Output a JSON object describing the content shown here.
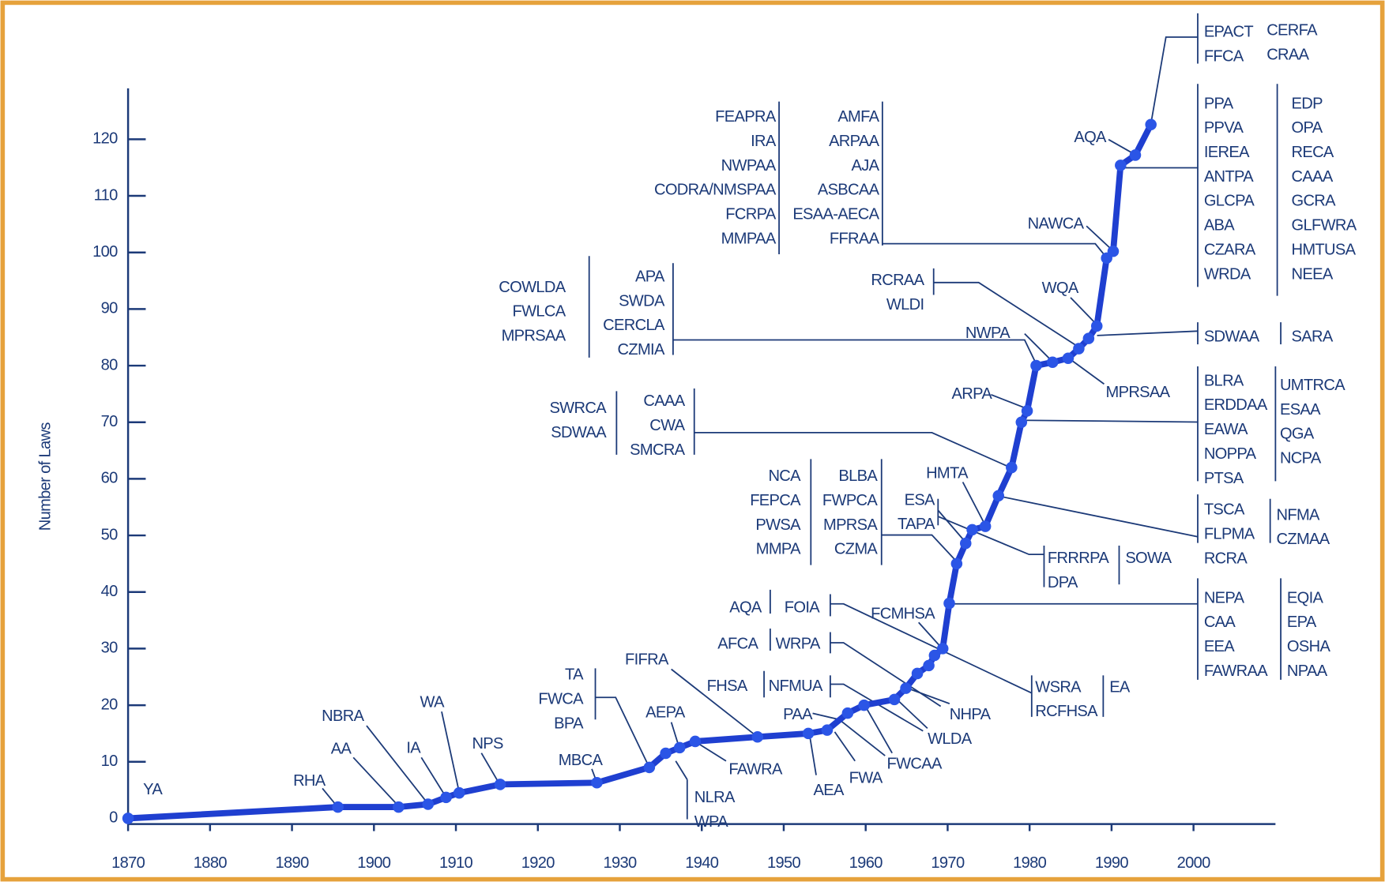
{
  "chart_data": {
    "type": "line",
    "y_label": "Number of Laws",
    "x": [
      1870,
      1895.6,
      1903,
      1906.6,
      1908.8,
      1910.4,
      1915.4,
      1927.2,
      1933.6,
      1935.6,
      1937.3,
      1939.2,
      1946.8,
      1953,
      1955.3,
      1957.8,
      1959.8,
      1963.5,
      1964.9,
      1966.3,
      1967.7,
      1968.4,
      1969.4,
      1970.2,
      1971.1,
      1972.2,
      1973,
      1974.6,
      1976.2,
      1977.8,
      1979,
      1979.7,
      1980.8,
      1982.8,
      1984.7,
      1986,
      1987.2,
      1988.2,
      1989.4,
      1990.2,
      1991.1,
      1992.9,
      1994.8
    ],
    "values": [
      0,
      2,
      2,
      2.5,
      3.7,
      4.5,
      6,
      6.3,
      9,
      11.5,
      12.5,
      13.6,
      14.4,
      15,
      15.6,
      18.6,
      20,
      21,
      23,
      25.6,
      27,
      28.8,
      30,
      38,
      45,
      48.6,
      51,
      51.6,
      57,
      62,
      70,
      72,
      80,
      80.6,
      81.3,
      83,
      84.8,
      87,
      99,
      100.2,
      115.4,
      117.2,
      122.6
    ],
    "color": "#1f3fd0",
    "marker_color": "#2b55e6",
    "xlim": [
      1870,
      2010
    ],
    "ylim": [
      -1,
      129
    ],
    "xticks": [
      1870,
      1880,
      1890,
      1900,
      1910,
      1920,
      1930,
      1940,
      1950,
      1960,
      1970,
      1980,
      1990,
      2000
    ],
    "yticks": [
      0,
      10,
      20,
      30,
      40,
      50,
      60,
      70,
      80,
      90,
      100,
      110,
      120
    ],
    "grid": false,
    "annotations": [
      {
        "columns": [
          [
            "YA"
          ]
        ]
      },
      {
        "columns": [
          [
            "RHA"
          ]
        ]
      },
      {
        "columns": [
          [
            "AA"
          ]
        ]
      },
      {
        "columns": [
          [
            "NBRA"
          ]
        ]
      },
      {
        "columns": [
          [
            "IA"
          ]
        ]
      },
      {
        "columns": [
          [
            "WA"
          ]
        ]
      },
      {
        "columns": [
          [
            "NPS"
          ]
        ]
      },
      {
        "columns": [
          [
            "MBCA"
          ]
        ]
      },
      {
        "columns": [
          [
            "TA",
            "FWCA",
            "BPA"
          ]
        ]
      },
      {
        "columns": [
          [
            "FIFRA"
          ]
        ]
      },
      {
        "columns": [
          [
            "AEPA"
          ]
        ]
      },
      {
        "columns": [
          [
            "NLRA",
            "WPA"
          ]
        ]
      },
      {
        "columns": [
          [
            "FAWRA"
          ]
        ]
      },
      {
        "columns": [
          [
            "FHSA"
          ]
        ]
      },
      {
        "columns": [
          [
            "AQA"
          ]
        ]
      },
      {
        "columns": [
          [
            "FOIA"
          ]
        ]
      },
      {
        "columns": [
          [
            "AFCA"
          ]
        ]
      },
      {
        "columns": [
          [
            "WRPA"
          ]
        ]
      },
      {
        "columns": [
          [
            "FCMHSA"
          ]
        ]
      },
      {
        "columns": [
          [
            "NFMUA"
          ]
        ]
      },
      {
        "columns": [
          [
            "PAA"
          ]
        ]
      },
      {
        "columns": [
          [
            "AEA"
          ]
        ]
      },
      {
        "columns": [
          [
            "FWA"
          ]
        ]
      },
      {
        "columns": [
          [
            "FWCAA"
          ]
        ]
      },
      {
        "columns": [
          [
            "WLDA"
          ]
        ]
      },
      {
        "columns": [
          [
            "NHPA"
          ]
        ]
      },
      {
        "columns": [
          [
            "WSRA",
            "RCFHSA"
          ]
        ]
      },
      {
        "columns": [
          [
            "EA"
          ]
        ]
      },
      {
        "columns": [
          [
            "NCA",
            "FEPCA",
            "PWSA",
            "MMPA"
          ]
        ]
      },
      {
        "columns": [
          [
            "BLBA",
            "FWPCA",
            "MPRSA",
            "CZMA"
          ]
        ]
      },
      {
        "columns": [
          [
            "HMTA"
          ]
        ]
      },
      {
        "columns": [
          [
            "ESA",
            "TAPA"
          ]
        ]
      },
      {
        "columns": [
          [
            "FRRRPA",
            "DPA"
          ]
        ]
      },
      {
        "columns": [
          [
            "SOWA"
          ]
        ]
      },
      {
        "columns": [
          [
            "SWRCA",
            "SDWAA"
          ]
        ]
      },
      {
        "columns": [
          [
            "CAAA",
            "CWA",
            "SMCRA"
          ]
        ]
      },
      {
        "columns": [
          [
            "COWLDA",
            "FWLCA",
            "MPRSAA"
          ]
        ]
      },
      {
        "columns": [
          [
            "APA",
            "SWDA",
            "CERCLA",
            "CZMIA"
          ]
        ]
      },
      {
        "columns": [
          [
            "FEAPRA",
            "IRA",
            "NWPAA",
            "CODRA/NMSPAA",
            "FCRPA",
            "MMPAA"
          ]
        ]
      },
      {
        "columns": [
          [
            "AMFA",
            "ARPAA",
            "AJA",
            "ASBCAA",
            "ESAA-AECA",
            "FFRAA"
          ]
        ]
      },
      {
        "columns": [
          [
            "RCRAA",
            "WLDI"
          ]
        ]
      },
      {
        "columns": [
          [
            "NWPA"
          ]
        ]
      },
      {
        "columns": [
          [
            "MPRSAA"
          ]
        ]
      },
      {
        "columns": [
          [
            "ARPA"
          ]
        ]
      },
      {
        "columns": [
          [
            "WQA"
          ]
        ]
      },
      {
        "columns": [
          [
            "NAWCA"
          ]
        ]
      },
      {
        "columns": [
          [
            "AQA"
          ]
        ]
      },
      {
        "columns": [
          [
            "EPACT",
            "FFCA"
          ],
          [
            "CERFA",
            "CRAA"
          ]
        ]
      },
      {
        "columns": [
          [
            "PPA",
            "PPVA",
            "IEREA",
            "ANTPA",
            "GLCPA",
            "ABA",
            "CZARA",
            "WRDA"
          ],
          [
            "EDP",
            "OPA",
            "RECA",
            "CAAA",
            "GCRA",
            "GLFWRA",
            "HMTUSA",
            "NEEA"
          ]
        ]
      },
      {
        "columns": [
          [
            "SDWAA"
          ],
          [
            "SARA"
          ]
        ]
      },
      {
        "columns": [
          [
            "BLRA",
            "ERDDAA",
            "EAWA",
            "NOPPA",
            "PTSA"
          ],
          [
            "UMTRCA",
            "ESAA",
            "QGA",
            "NCPA"
          ]
        ]
      },
      {
        "columns": [
          [
            "TSCA",
            "FLPMA",
            "RCRA"
          ],
          [
            "NFMA",
            "CZMAA"
          ]
        ]
      },
      {
        "columns": [
          [
            "NEPA",
            "CAA",
            "EEA",
            "FAWRAA"
          ],
          [
            "EQIA",
            "EPA",
            "OSHA",
            "NPAA"
          ]
        ]
      }
    ]
  }
}
